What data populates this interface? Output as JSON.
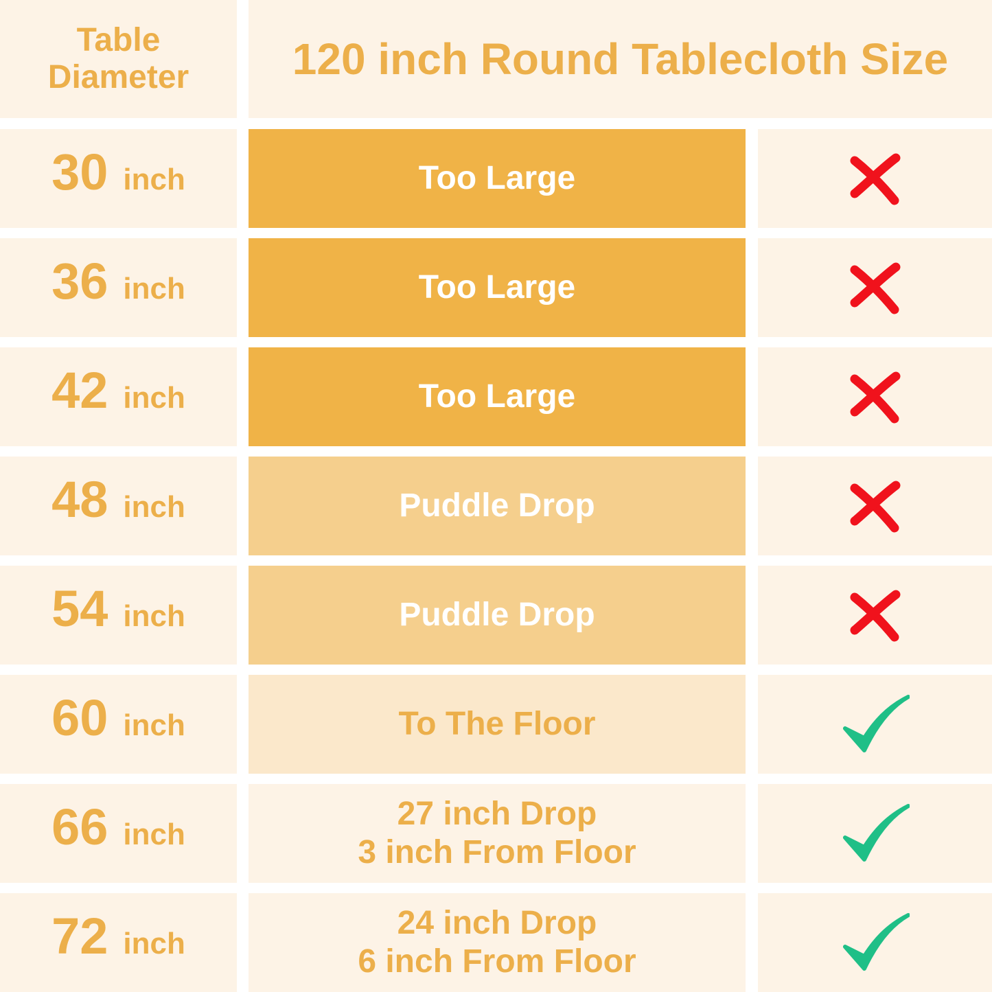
{
  "header": {
    "diameter_title": [
      "Table",
      "Diameter"
    ],
    "size_title": "120 inch Round Tablecloth Size"
  },
  "rows": [
    {
      "diameter": "30",
      "unit": "inch",
      "fit": [
        "Too Large"
      ]
    },
    {
      "diameter": "36",
      "unit": "inch",
      "fit": [
        "Too Large"
      ]
    },
    {
      "diameter": "42",
      "unit": "inch",
      "fit": [
        "Too Large"
      ]
    },
    {
      "diameter": "48",
      "unit": "inch",
      "fit": [
        "Puddle Drop"
      ]
    },
    {
      "diameter": "54",
      "unit": "inch",
      "fit": [
        "Puddle Drop"
      ]
    },
    {
      "diameter": "60",
      "unit": "inch",
      "fit": [
        "To The Floor"
      ]
    },
    {
      "diameter": "66",
      "unit": "inch",
      "fit": [
        "27 inch Drop",
        "3 inch From Floor"
      ]
    },
    {
      "diameter": "72",
      "unit": "inch",
      "fit": [
        "24 inch Drop",
        "6 inch From Floor"
      ]
    }
  ]
}
